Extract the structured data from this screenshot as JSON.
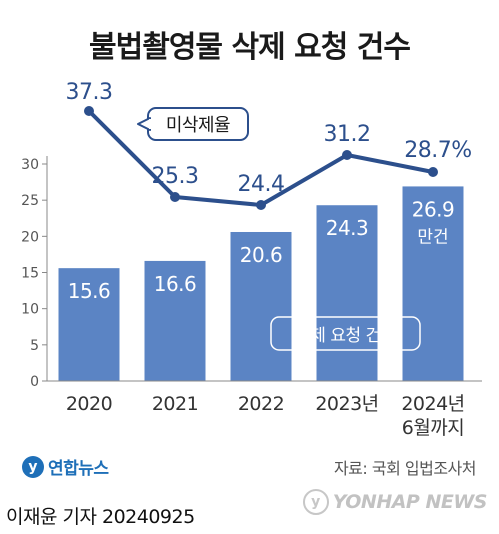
{
  "header": {
    "title": "불법촬영물 삭제 요청 건수"
  },
  "chart_data": {
    "type": "bar",
    "categories": [
      "2020",
      "2021",
      "2022",
      "2023년",
      "2024년\n6월까지"
    ],
    "category_lines": [
      [
        "2020"
      ],
      [
        "2021"
      ],
      [
        "2022"
      ],
      [
        "2023년"
      ],
      [
        "2024년",
        "6월까지"
      ]
    ],
    "bar_series": {
      "name": "삭제 요청 건수",
      "values": [
        15.6,
        16.6,
        20.6,
        24.3,
        26.9
      ],
      "labels": [
        "15.6",
        "16.6",
        "20.6",
        "24.3",
        "26.9"
      ],
      "color": "#5b84c4"
    },
    "unit_label": "만건",
    "line_series": {
      "name": "미삭제율",
      "values": [
        37.3,
        25.3,
        24.4,
        31.2,
        28.7
      ],
      "labels": [
        "37.3",
        "25.3",
        "24.4",
        "31.2",
        "28.7%"
      ],
      "color": "#2c4f8c"
    },
    "ylim": [
      0,
      30
    ],
    "yticks": [
      0,
      5,
      10,
      15,
      20,
      25,
      30
    ],
    "grid": false
  },
  "footer": {
    "logo_mark": "y",
    "logo_text": "연합뉴스",
    "source": "자료: 국회 입법조사처",
    "reporter": "이재윤 기자 20240925",
    "watermark_mark": "y",
    "watermark_text": "YONHAP NEWS"
  }
}
